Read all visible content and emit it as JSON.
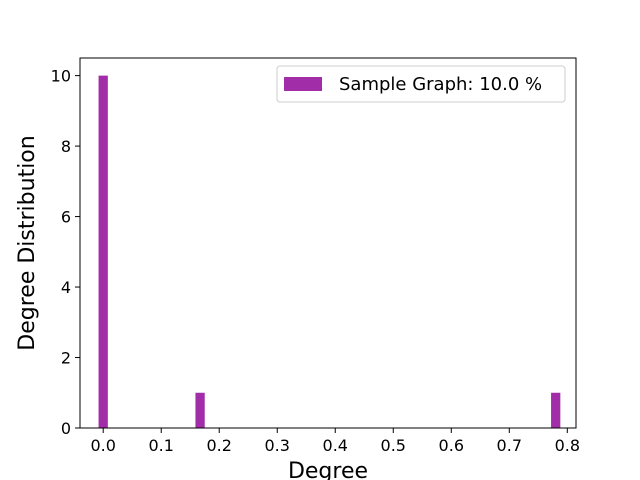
{
  "chart_data": {
    "type": "bar",
    "title": "",
    "xlabel": "Degree",
    "ylabel": "Degree Distribution",
    "xlim": [
      -0.04,
      0.815
    ],
    "ylim": [
      0,
      10.5
    ],
    "xticks": [
      "0.0",
      "0.1",
      "0.2",
      "0.3",
      "0.4",
      "0.5",
      "0.6",
      "0.7",
      "0.8"
    ],
    "yticks": [
      "0",
      "2",
      "4",
      "6",
      "8",
      "10"
    ],
    "bar_width": 0.016,
    "legend": {
      "position": "top-right"
    },
    "series": [
      {
        "name": "Sample Graph: 10.0 %",
        "color": "#a12ea8",
        "points": [
          {
            "x": 0.0,
            "y": 10
          },
          {
            "x": 0.167,
            "y": 1
          },
          {
            "x": 0.78,
            "y": 1
          }
        ]
      }
    ],
    "grid": false
  }
}
